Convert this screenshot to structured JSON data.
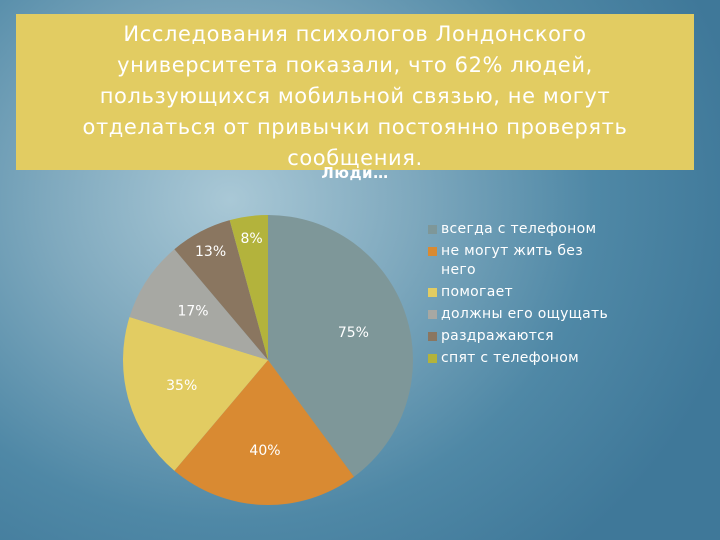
{
  "banner": {
    "text": "Исследования психологов Лондонского университета показали, что 62% людей, пользующихся мобильной связью, не могут отделаться от привычки постоянно проверять сообщения."
  },
  "chart_data": {
    "type": "pie",
    "title": "Люди…",
    "legend_position": "right",
    "categories": [
      "всегда с телефоном",
      "не могут жить без него",
      "помогает",
      "должны его ощущать",
      "раздражаются",
      "спят с телефоном"
    ],
    "values": [
      75,
      40,
      35,
      17,
      13,
      8
    ],
    "labels": [
      "75%",
      "40%",
      "35%",
      "17%",
      "13%",
      "8%"
    ],
    "colors": [
      "#7e9799",
      "#d98a32",
      "#e2cc62",
      "#a7a8a3",
      "#8a7660",
      "#b3b33c"
    ]
  }
}
